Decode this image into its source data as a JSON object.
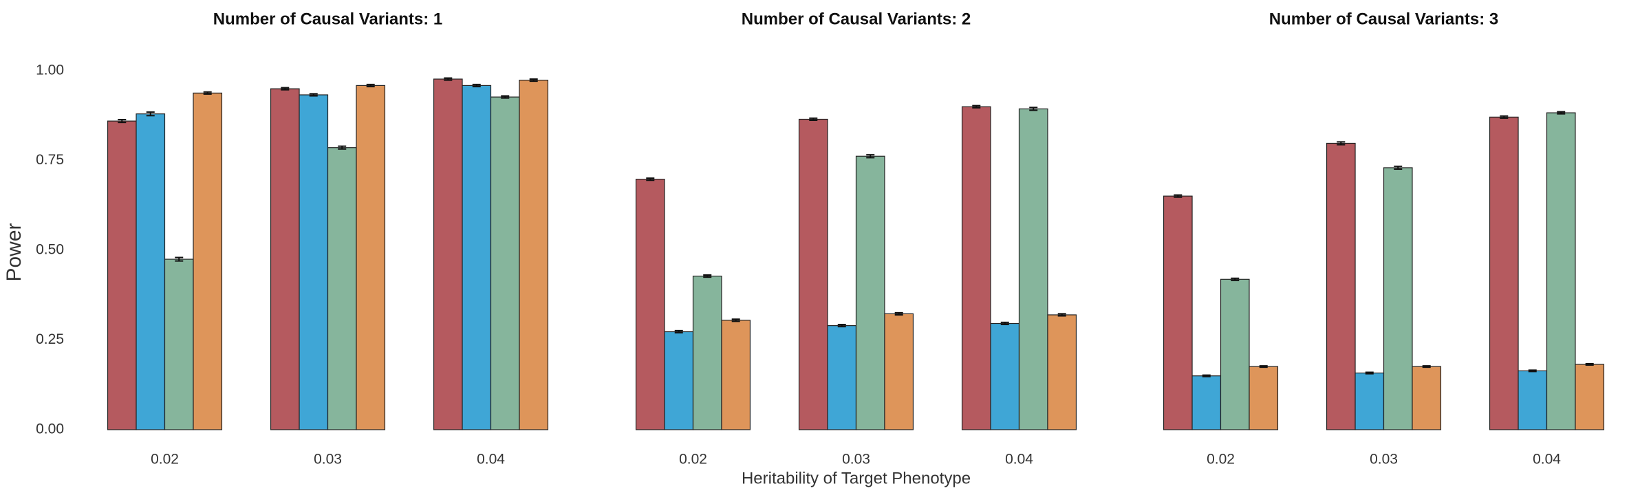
{
  "chart_data": [
    {
      "type": "bar",
      "title": "Number of Causal Variants: 1",
      "y_label": "Power",
      "categories": [
        "0.02",
        "0.03",
        "0.04"
      ],
      "series": [
        {
          "color": "#b55a5f",
          "values": [
            0.86,
            0.95,
            0.977
          ],
          "errors": [
            0.004,
            0.003,
            0.003
          ]
        },
        {
          "color": "#3fa6d6",
          "values": [
            0.88,
            0.933,
            0.959
          ],
          "errors": [
            0.005,
            0.003,
            0.003
          ]
        },
        {
          "color": "#86b59c",
          "values": [
            0.475,
            0.786,
            0.927
          ],
          "errors": [
            0.005,
            0.004,
            0.003
          ]
        },
        {
          "color": "#de955a",
          "values": [
            0.938,
            0.959,
            0.974
          ],
          "errors": [
            0.003,
            0.003,
            0.003
          ]
        }
      ],
      "ylim": [
        0,
        1.05
      ],
      "yticks": [
        {
          "value": 0,
          "label": "0.00"
        },
        {
          "value": 0.25,
          "label": "0.25"
        },
        {
          "value": 0.5,
          "label": "0.50"
        },
        {
          "value": 0.75,
          "label": "0.75"
        },
        {
          "value": 1,
          "label": "1.00"
        }
      ]
    },
    {
      "type": "bar",
      "title": "Number of Causal Variants: 2",
      "x_label": "Heritability of Target Phenotype",
      "categories": [
        "0.02",
        "0.03",
        "0.04"
      ],
      "series": [
        {
          "color": "#b55a5f",
          "values": [
            0.698,
            0.865,
            0.9
          ],
          "errors": [
            0.003,
            0.003,
            0.003
          ]
        },
        {
          "color": "#3fa6d6",
          "values": [
            0.273,
            0.29,
            0.296
          ],
          "errors": [
            0.003,
            0.003,
            0.003
          ]
        },
        {
          "color": "#86b59c",
          "values": [
            0.428,
            0.762,
            0.894
          ],
          "errors": [
            0.003,
            0.004,
            0.004
          ]
        },
        {
          "color": "#de955a",
          "values": [
            0.305,
            0.323,
            0.32
          ],
          "errors": [
            0.003,
            0.003,
            0.003
          ]
        }
      ],
      "ylim": [
        0,
        1.05
      ]
    },
    {
      "type": "bar",
      "title": "Number of Causal Variants: 3",
      "categories": [
        "0.02",
        "0.03",
        "0.04"
      ],
      "series": [
        {
          "color": "#b55a5f",
          "values": [
            0.651,
            0.798,
            0.871
          ],
          "errors": [
            0.003,
            0.004,
            0.003
          ]
        },
        {
          "color": "#3fa6d6",
          "values": [
            0.15,
            0.158,
            0.164
          ],
          "errors": [
            0.002,
            0.002,
            0.002
          ]
        },
        {
          "color": "#86b59c",
          "values": [
            0.419,
            0.73,
            0.883
          ],
          "errors": [
            0.003,
            0.004,
            0.003
          ]
        },
        {
          "color": "#de955a",
          "values": [
            0.176,
            0.176,
            0.182
          ],
          "errors": [
            0.002,
            0.002,
            0.002
          ]
        }
      ],
      "ylim": [
        0,
        1.05
      ]
    }
  ]
}
